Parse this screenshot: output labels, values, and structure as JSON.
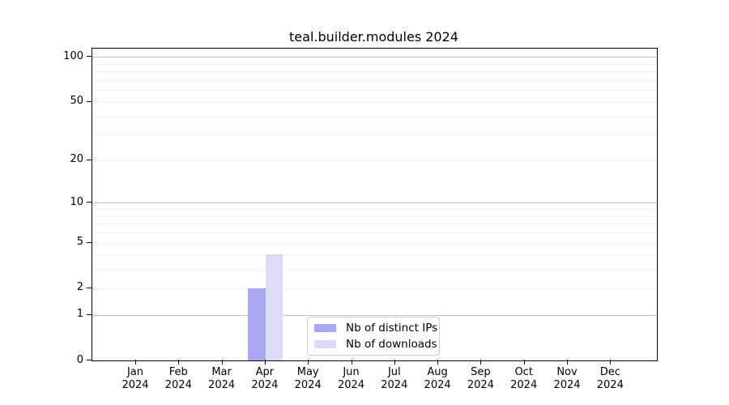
{
  "title": "teal.builder.modules 2024",
  "chart_data": {
    "type": "bar",
    "title": "teal.builder.modules 2024",
    "categories": [
      "Jan",
      "Feb",
      "Mar",
      "Apr",
      "May",
      "Jun",
      "Jul",
      "Aug",
      "Sep",
      "Oct",
      "Nov",
      "Dec"
    ],
    "year_label": "2024",
    "series": [
      {
        "name": "Nb of distinct IPs",
        "color": "#a7a7f2",
        "values": [
          0,
          0,
          0,
          2,
          0,
          0,
          0,
          0,
          0,
          0,
          0,
          0
        ]
      },
      {
        "name": "Nb of downloads",
        "color": "#dcdcf8",
        "values": [
          0,
          0,
          0,
          4,
          0,
          0,
          0,
          0,
          0,
          0,
          0,
          0
        ]
      }
    ],
    "y_axis": {
      "scale": "log1p",
      "tick_values": [
        0,
        1,
        2,
        5,
        10,
        20,
        50,
        100
      ],
      "tick_labels": [
        "0",
        "1",
        "2",
        "5",
        "10",
        "20",
        "50",
        "100"
      ],
      "major_gridlines": [
        1,
        10,
        100
      ],
      "minor_gridlines": [
        2,
        3,
        4,
        5,
        6,
        7,
        8,
        9,
        20,
        30,
        40,
        50,
        60,
        70,
        80,
        90
      ],
      "ylim": [
        0,
        110
      ]
    },
    "x_axis": {
      "label_format": "month over year"
    },
    "legend": {
      "position": "lower center",
      "entries": [
        "Nb of distinct IPs",
        "Nb of downloads"
      ]
    },
    "grid": "on",
    "colors": {
      "bar_distinct_ips": "#a7a7f2",
      "bar_downloads": "#dcdcf8",
      "major_grid": "#c0c0c0",
      "minor_grid": "#efefef",
      "frame": "#000000",
      "legend_border": "#cccccc"
    }
  }
}
